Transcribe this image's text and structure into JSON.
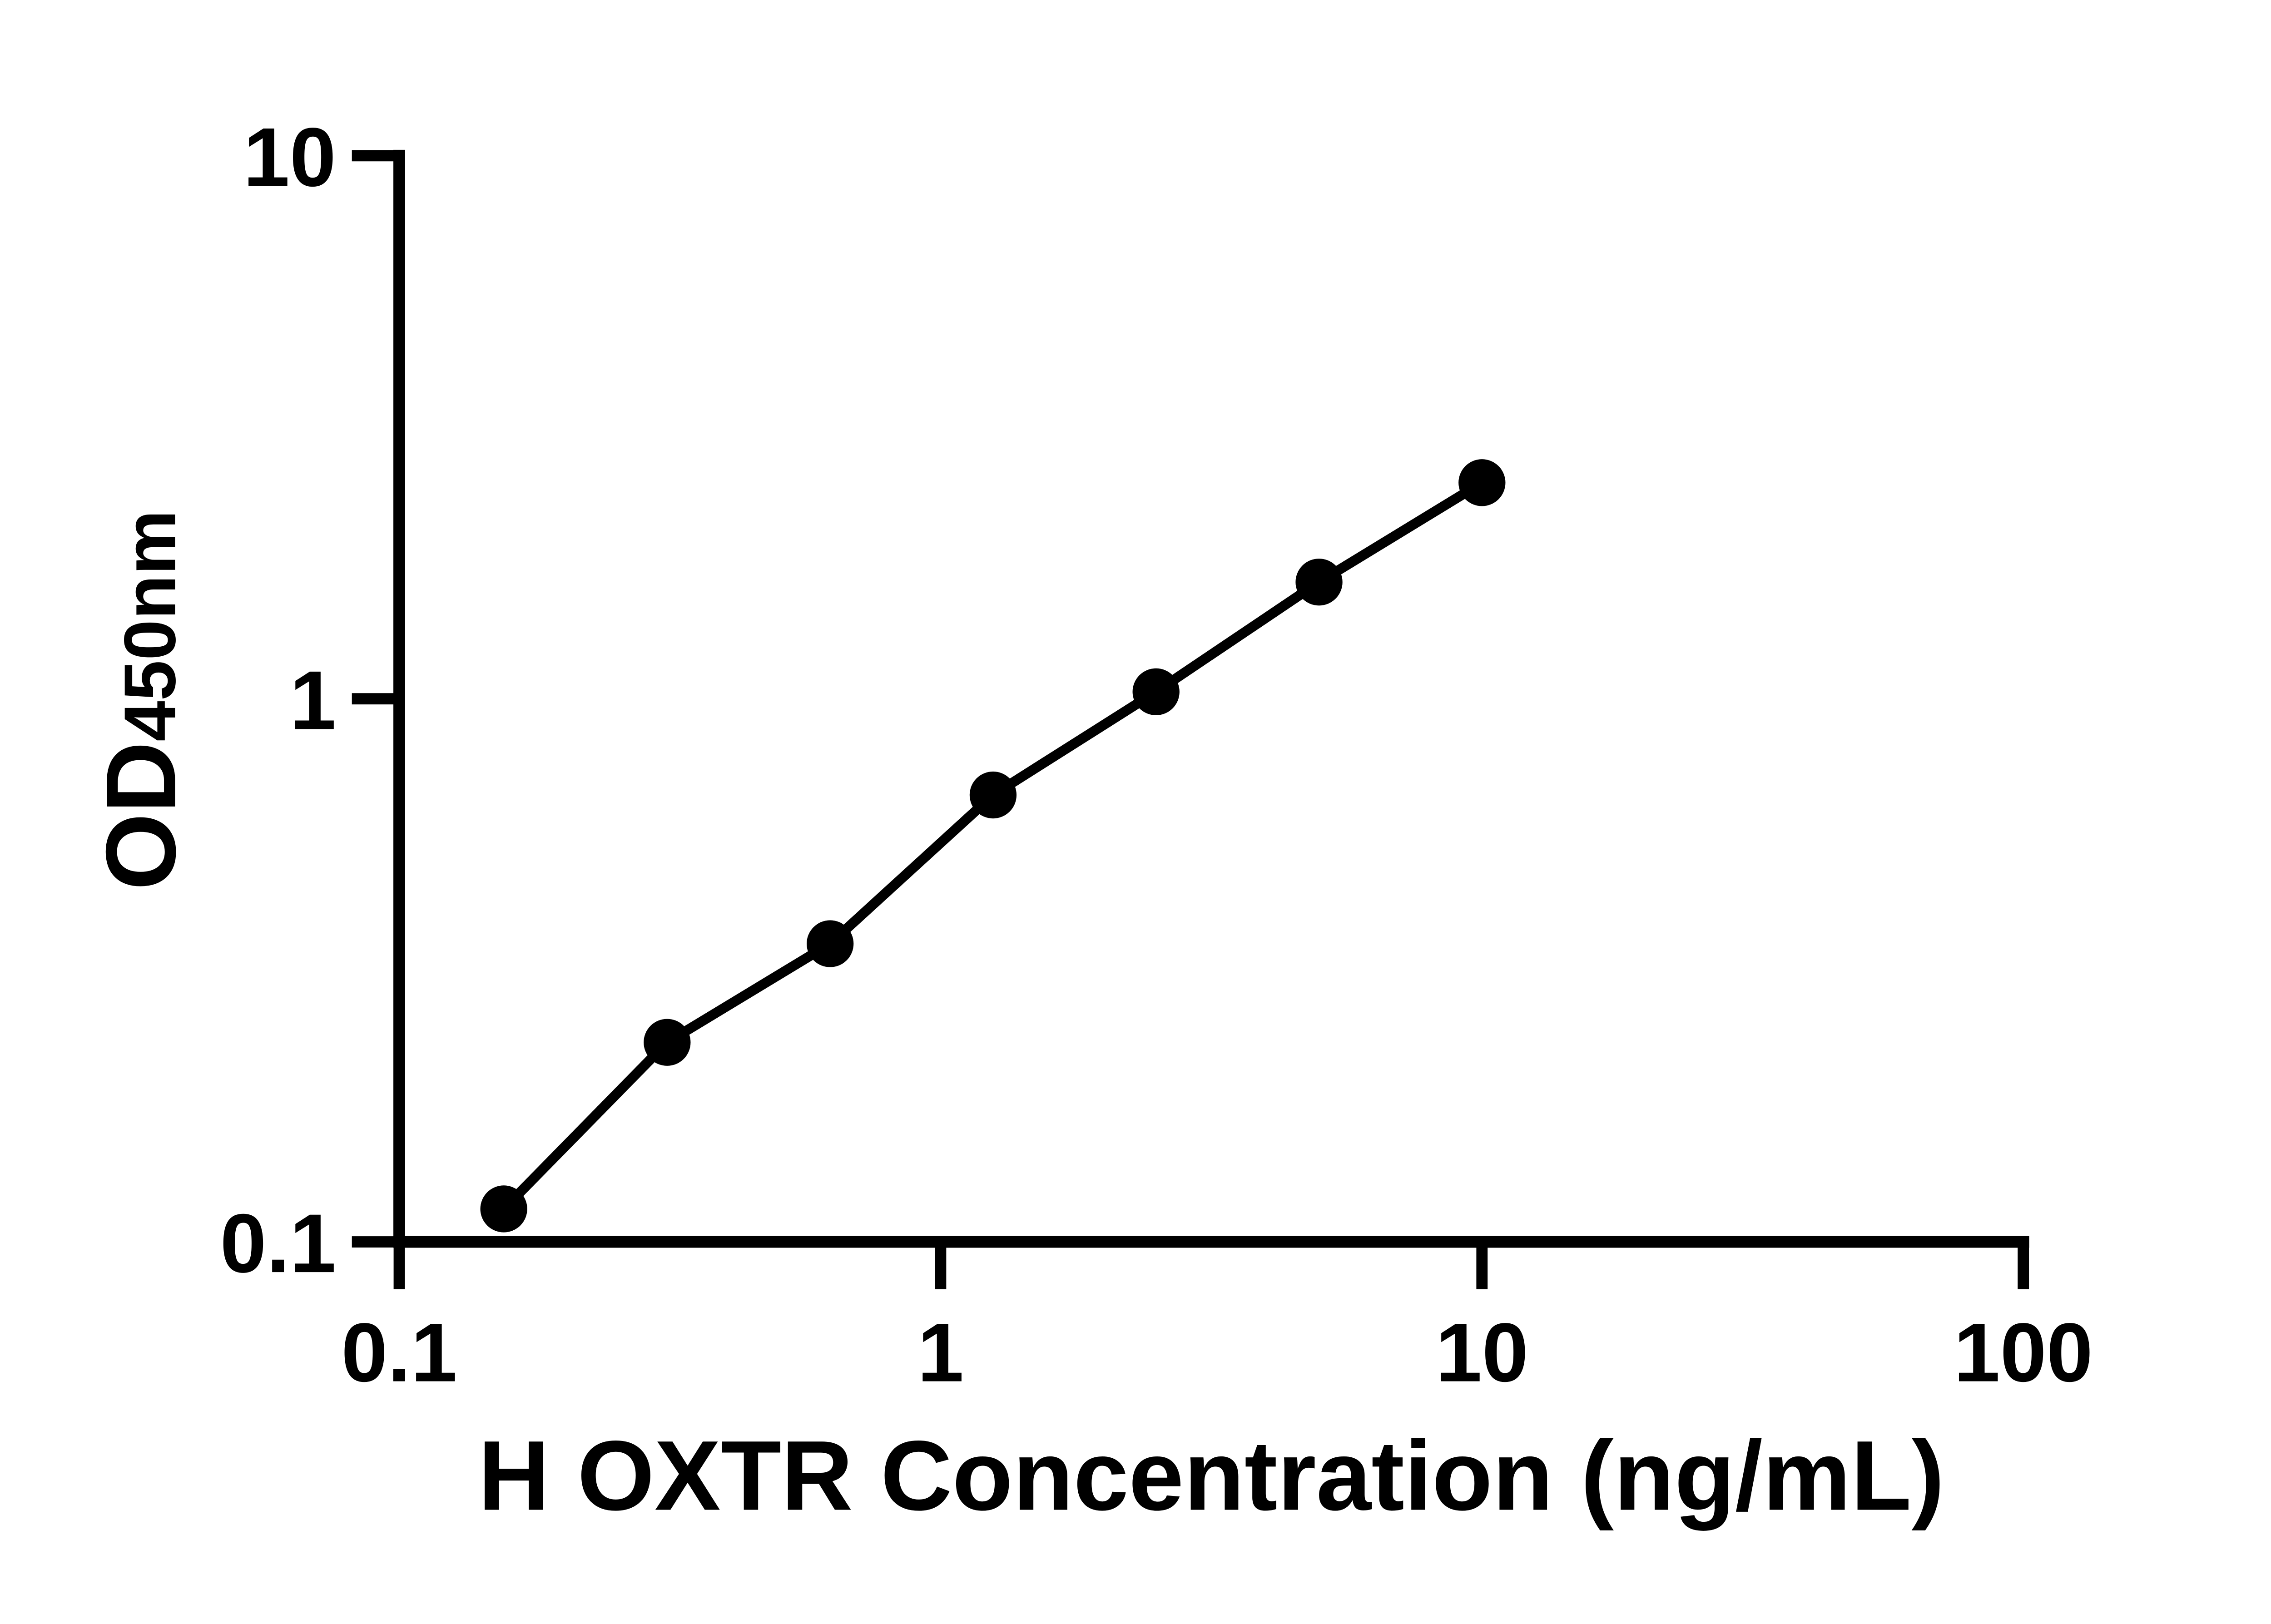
{
  "chart_data": {
    "type": "scatter",
    "title": "",
    "xlabel": "H OXTR Concentration (ng/mL)",
    "ylabel": "OD450nm",
    "ylabel_main": "OD",
    "ylabel_sub": "450nm",
    "x_scale": "log",
    "y_scale": "log",
    "xlim": [
      0.1,
      100
    ],
    "ylim": [
      0.1,
      10
    ],
    "x_ticks": [
      {
        "value": 0.1,
        "label": "0.1"
      },
      {
        "value": 1,
        "label": "1"
      },
      {
        "value": 10,
        "label": "10"
      },
      {
        "value": 100,
        "label": "100"
      }
    ],
    "y_ticks": [
      {
        "value": 0.1,
        "label": "0.1"
      },
      {
        "value": 1,
        "label": "1"
      },
      {
        "value": 10,
        "label": "10"
      }
    ],
    "grid": false,
    "legend": false,
    "series": [
      {
        "marker": "filled-circle",
        "line": "solid",
        "color": "#000000",
        "points": [
          {
            "x": 0.156,
            "y": 0.115
          },
          {
            "x": 0.3125,
            "y": 0.233
          },
          {
            "x": 0.625,
            "y": 0.354
          },
          {
            "x": 1.25,
            "y": 0.665
          },
          {
            "x": 2.5,
            "y": 1.03
          },
          {
            "x": 5,
            "y": 1.64
          },
          {
            "x": 10,
            "y": 2.5
          }
        ]
      }
    ],
    "colors": {
      "axis": "#000000",
      "marker": "#000000",
      "line": "#000000",
      "background": "#ffffff"
    }
  }
}
